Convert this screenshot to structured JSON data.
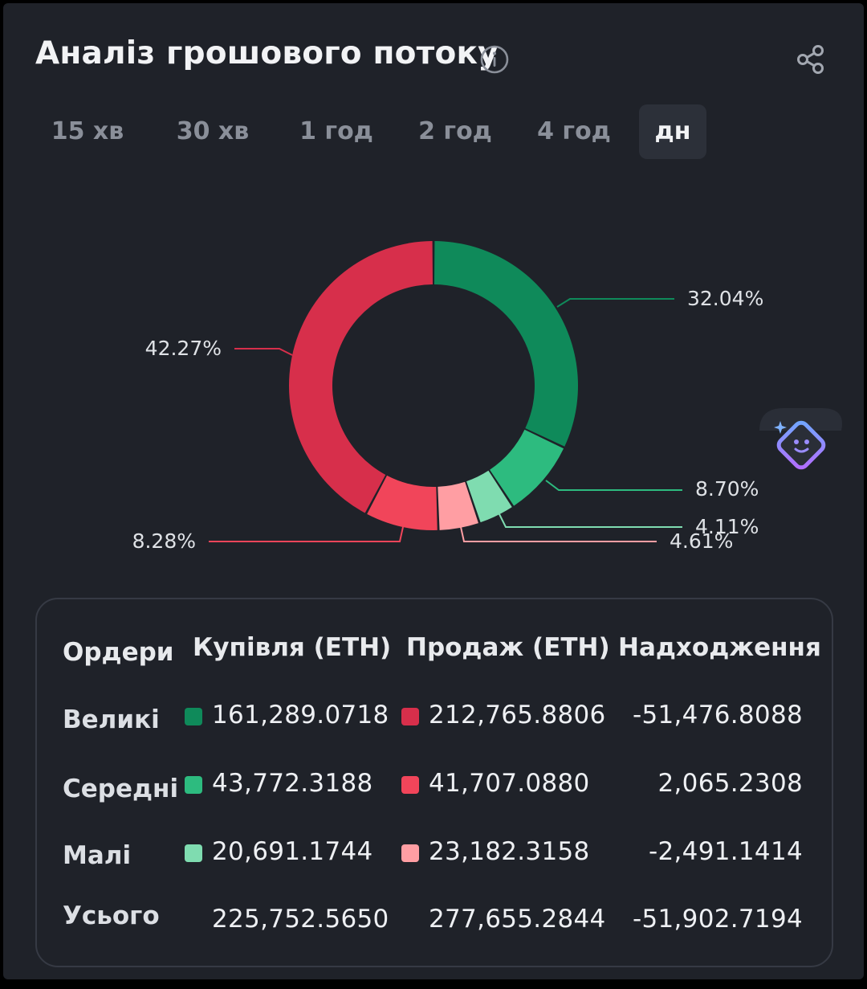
{
  "header": {
    "title": "Аналіз грошового потоку",
    "info_icon": "info-icon",
    "share_icon": "share-icon"
  },
  "tabs": [
    {
      "label": "15 хв",
      "active": false
    },
    {
      "label": "30 хв",
      "active": false
    },
    {
      "label": "1 год",
      "active": false
    },
    {
      "label": "2 год",
      "active": false
    },
    {
      "label": "4 год",
      "active": false
    },
    {
      "label": "дн",
      "active": true
    }
  ],
  "chart_data": {
    "type": "pie",
    "donut": true,
    "slices": [
      {
        "label": "32.04%",
        "value": 32.04,
        "color": "#0f8a5a"
      },
      {
        "label": "8.70%",
        "value": 8.7,
        "color": "#2dbb7f"
      },
      {
        "label": "4.11%",
        "value": 4.11,
        "color": "#7fdcb0"
      },
      {
        "label": "4.61%",
        "value": 4.61,
        "color": "#ff9ea3"
      },
      {
        "label": "8.28%",
        "value": 8.28,
        "color": "#f1455a"
      },
      {
        "label": "42.27%",
        "value": 42.27,
        "color": "#d72f4b"
      }
    ]
  },
  "table": {
    "headers": [
      "Ордери",
      "Купівля (ETH)",
      "Продаж (ETH)",
      "Надходження"
    ],
    "rows": [
      {
        "label": "Великі",
        "buy": "161,289.0718",
        "sell": "212,765.8806",
        "inflow": "-51,476.8088",
        "buy_color": "#0f8a5a",
        "sell_color": "#d72f4b"
      },
      {
        "label": "Середні",
        "buy": "43,772.3188",
        "sell": "41,707.0880",
        "inflow": "2,065.2308",
        "buy_color": "#2dbb7f",
        "sell_color": "#f1455a"
      },
      {
        "label": "Малі",
        "buy": "20,691.1744",
        "sell": "23,182.3158",
        "inflow": "-2,491.1414",
        "buy_color": "#7fdcb0",
        "sell_color": "#ff9ea3"
      }
    ],
    "total": {
      "label": "Усього",
      "buy": "225,752.5650",
      "sell": "277,655.2844",
      "inflow": "-51,902.7194"
    }
  },
  "assistant_icon": "ai-assistant-icon"
}
